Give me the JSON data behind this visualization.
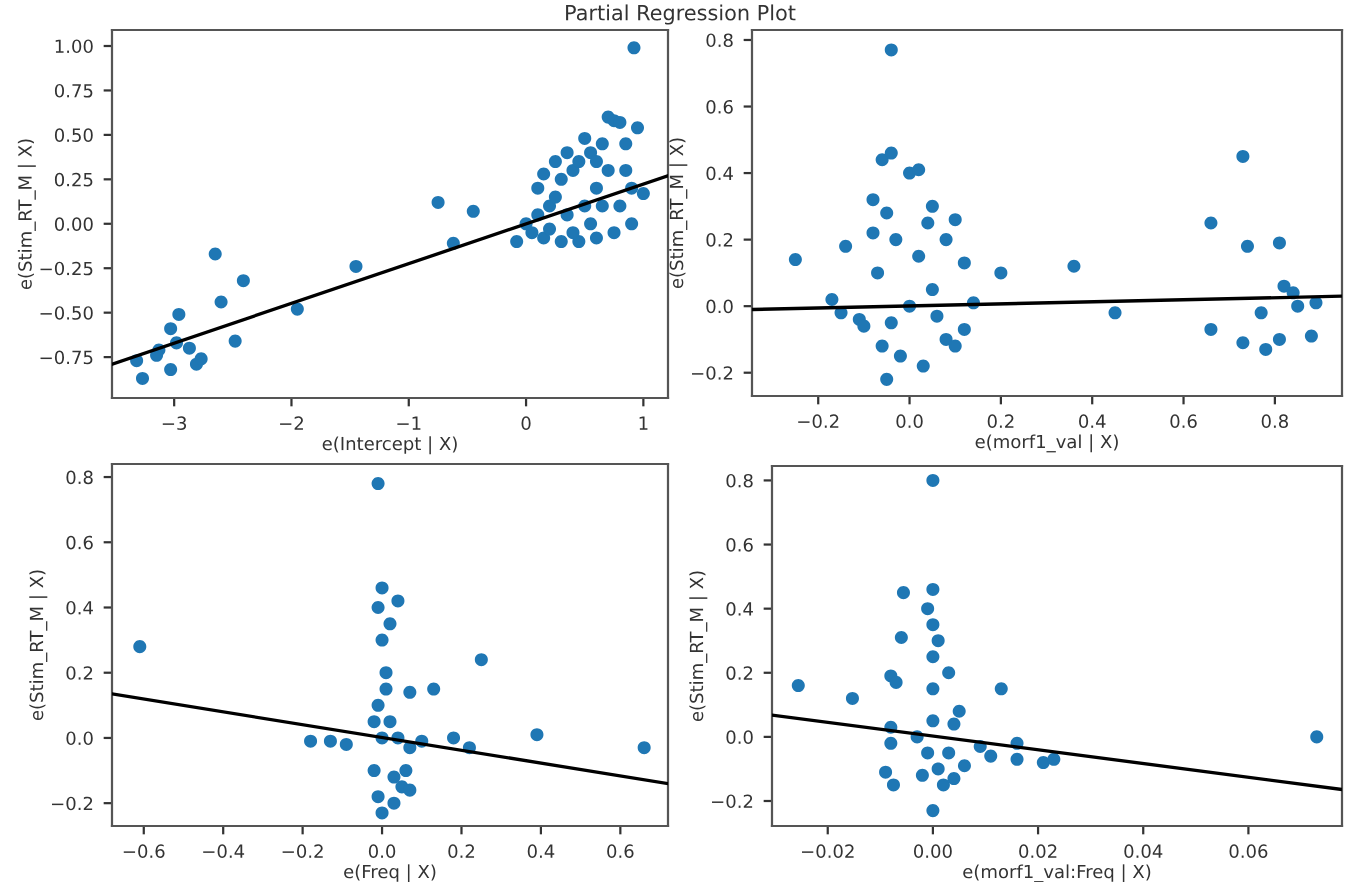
{
  "chart_data": [
    {
      "type": "scatter",
      "title": "Partial Regression Plot",
      "xlabel": "e(Intercept | X)",
      "ylabel": "e(Stim_RT_M | X)",
      "xlim": [
        -3.53,
        1.21
      ],
      "ylim": [
        -0.98,
        1.09
      ],
      "xticks": [
        {
          "value": -3,
          "label": "−3"
        },
        {
          "value": -2,
          "label": "−2"
        },
        {
          "value": -1,
          "label": "−1"
        },
        0,
        1
      ],
      "yticks": [
        {
          "value": -0.75,
          "label": "−0.75"
        },
        {
          "value": -0.5,
          "label": "−0.50"
        },
        {
          "value": -0.25,
          "label": "−0.25"
        },
        {
          "value": 0,
          "label": "0.00"
        },
        {
          "value": 0.25,
          "label": "0.25"
        },
        {
          "value": 0.5,
          "label": "0.50"
        },
        {
          "value": 0.75,
          "label": "0.75"
        },
        {
          "value": 1,
          "label": "1.00"
        }
      ],
      "grid": false,
      "marker": "circle",
      "series": [
        {
          "type": "scatter",
          "color": "#1f77b4",
          "x": [
            0.92,
            -0.75,
            -0.45,
            -0.62,
            -1.45,
            -1.95,
            -2.65,
            -2.6,
            -2.41,
            -2.48,
            -2.96,
            -3.03,
            -2.98,
            -3.32,
            -3.27,
            -3.03,
            -3.13,
            -2.87,
            -2.81,
            -2.77,
            -3.15,
            -0.08,
            1.0,
            0.0,
            0.05,
            0.1,
            0.15,
            0.2,
            0.25,
            0.3,
            0.3,
            0.35,
            0.4,
            0.45,
            0.45,
            0.5,
            0.5,
            0.55,
            0.6,
            0.6,
            0.65,
            0.7,
            0.75,
            0.8,
            0.7,
            0.75,
            0.8,
            0.85,
            0.85,
            0.9,
            0.95,
            0.9,
            0.1,
            0.15,
            0.2,
            0.4,
            0.55,
            0.65,
            0.35,
            0.25,
            0.6
          ],
          "values": [
            0.99,
            0.12,
            0.07,
            -0.11,
            -0.24,
            -0.48,
            -0.17,
            -0.44,
            -0.32,
            -0.66,
            -0.51,
            -0.59,
            -0.67,
            -0.77,
            -0.87,
            -0.82,
            -0.71,
            -0.7,
            -0.79,
            -0.76,
            -0.74,
            -0.1,
            0.17,
            0.0,
            -0.05,
            0.05,
            -0.08,
            0.1,
            0.15,
            -0.1,
            0.25,
            0.05,
            0.3,
            -0.1,
            0.35,
            0.1,
            0.48,
            0.4,
            -0.08,
            0.2,
            0.45,
            0.6,
            0.58,
            0.57,
            0.3,
            -0.05,
            0.1,
            0.3,
            0.45,
            0.2,
            0.54,
            0.0,
            0.2,
            0.28,
            -0.03,
            -0.05,
            0.0,
            0.1,
            0.4,
            0.35,
            0.35
          ]
        },
        {
          "type": "line",
          "color": "#000000",
          "marker": "none",
          "x": [
            -3.53,
            1.21
          ],
          "values": [
            -0.79,
            0.27
          ]
        }
      ]
    },
    {
      "type": "scatter",
      "xlabel": "e(morf1_val | X)",
      "ylabel": "e(Stim_RT_M | X)",
      "xlim": [
        -0.345,
        0.947
      ],
      "ylim": [
        -0.27,
        0.83
      ],
      "xticks": [
        {
          "value": -0.2,
          "label": "−0.2"
        },
        {
          "value": 0,
          "label": "0.0"
        },
        0.2,
        0.4,
        0.6,
        0.8
      ],
      "yticks": [
        {
          "value": -0.2,
          "label": "−0.2"
        },
        {
          "value": 0,
          "label": "0.0"
        },
        0.2,
        0.4,
        0.6,
        0.8
      ],
      "grid": false,
      "marker": "circle",
      "series": [
        {
          "type": "scatter",
          "color": "#1f77b4",
          "x": [
            -0.04,
            -0.25,
            -0.14,
            -0.17,
            -0.15,
            -0.11,
            0.2,
            0.36,
            0.45,
            0.66,
            0.66,
            0.73,
            0.74,
            0.73,
            0.78,
            0.77,
            0.81,
            0.82,
            0.81,
            0.84,
            0.85,
            0.88,
            0.89,
            -0.06,
            -0.04,
            -0.08,
            0.0,
            0.02,
            -0.05,
            0.05,
            0.1,
            -0.1,
            -0.05,
            -0.02,
            0.03,
            0.08,
            0.12,
            0.14,
            0.12,
            0.08,
            -0.03,
            0.0,
            0.05,
            -0.07,
            0.02,
            -0.04,
            0.06,
            -0.08,
            0.1,
            -0.06,
            0.04
          ],
          "values": [
            0.77,
            0.14,
            0.18,
            0.02,
            -0.02,
            -0.04,
            0.1,
            0.12,
            -0.02,
            -0.07,
            0.25,
            0.45,
            0.18,
            -0.11,
            -0.13,
            -0.02,
            0.19,
            0.06,
            -0.1,
            0.04,
            0.0,
            -0.09,
            0.01,
            0.44,
            0.46,
            0.32,
            0.4,
            0.41,
            0.28,
            0.3,
            0.26,
            -0.06,
            -0.22,
            -0.15,
            -0.18,
            -0.1,
            -0.07,
            0.01,
            0.13,
            0.2,
            0.2,
            0.0,
            0.05,
            0.1,
            0.15,
            -0.05,
            -0.03,
            0.22,
            -0.12,
            -0.12,
            0.25
          ]
        },
        {
          "type": "line",
          "color": "#000000",
          "marker": "none",
          "x": [
            -0.345,
            0.947
          ],
          "values": [
            -0.01,
            0.03
          ]
        }
      ]
    },
    {
      "type": "scatter",
      "xlabel": "e(Freq | X)",
      "ylabel": "e(Stim_RT_M | X)",
      "xlim": [
        -0.68,
        0.72
      ],
      "ylim": [
        -0.27,
        0.84
      ],
      "xticks": [
        {
          "value": -0.6,
          "label": "−0.6"
        },
        {
          "value": -0.4,
          "label": "−0.4"
        },
        {
          "value": -0.2,
          "label": "−0.2"
        },
        {
          "value": 0,
          "label": "0.0"
        },
        0.2,
        0.4,
        0.6
      ],
      "yticks": [
        {
          "value": -0.2,
          "label": "−0.2"
        },
        {
          "value": 0,
          "label": "0.0"
        },
        0.2,
        0.4,
        0.6,
        0.8
      ],
      "grid": false,
      "marker": "circle",
      "series": [
        {
          "type": "scatter",
          "color": "#1f77b4",
          "x": [
            -0.01,
            -0.61,
            0.25,
            0.04,
            0.13,
            0.07,
            -0.13,
            -0.18,
            -0.09,
            0.18,
            0.22,
            0.39,
            0.66,
            0.1,
            0.0,
            -0.01,
            0.0,
            0.01,
            -0.01,
            0.02,
            0.0,
            -0.02,
            0.03,
            0.05,
            0.07,
            0.06,
            0.0,
            -0.01,
            0.02,
            0.01,
            0.04,
            -0.02,
            0.03,
            0.07
          ],
          "values": [
            0.78,
            0.28,
            0.24,
            0.42,
            0.15,
            0.14,
            -0.01,
            -0.01,
            -0.02,
            0.0,
            -0.03,
            0.01,
            -0.03,
            -0.01,
            0.46,
            0.4,
            0.3,
            0.2,
            0.1,
            0.05,
            0.0,
            -0.1,
            -0.12,
            -0.15,
            -0.03,
            -0.1,
            -0.23,
            -0.18,
            0.35,
            0.15,
            0.0,
            0.05,
            -0.2,
            -0.16
          ]
        },
        {
          "type": "line",
          "color": "#000000",
          "marker": "none",
          "x": [
            -0.68,
            0.72
          ],
          "values": [
            0.135,
            -0.14
          ]
        }
      ]
    },
    {
      "type": "scatter",
      "xlabel": "e(morf1_val:Freq | X)",
      "ylabel": "e(Stim_RT_M | X)",
      "xlim": [
        -0.0306,
        0.0778
      ],
      "ylim": [
        -0.278,
        0.845
      ],
      "xticks": [
        {
          "value": -0.02,
          "label": "−0.02"
        },
        {
          "value": 0,
          "label": "0.00"
        },
        {
          "value": 0.02,
          "label": "0.02"
        },
        {
          "value": 0.04,
          "label": "0.04"
        },
        {
          "value": 0.06,
          "label": "0.06"
        }
      ],
      "yticks": [
        {
          "value": -0.2,
          "label": "−0.2"
        },
        {
          "value": 0,
          "label": "0.0"
        },
        0.2,
        0.4,
        0.6,
        0.8
      ],
      "grid": false,
      "marker": "circle",
      "series": [
        {
          "type": "scatter",
          "color": "#1f77b4",
          "x": [
            0.0,
            -0.0256,
            -0.0153,
            -0.0056,
            -0.006,
            -0.008,
            -0.007,
            0.003,
            0.013,
            0.005,
            0.004,
            0.016,
            0.016,
            0.021,
            0.023,
            0.006,
            -0.009,
            -0.0075,
            0.073,
            -0.008,
            -0.008,
            0.011,
            0.009,
            0.0,
            0.0,
            0.0,
            0.0,
            0.0,
            -0.001,
            0.001,
            0.0,
            0.002,
            -0.002,
            0.003,
            0.001,
            -0.001,
            0.004,
            -0.003
          ],
          "values": [
            0.8,
            0.16,
            0.12,
            0.45,
            0.31,
            0.19,
            0.17,
            0.2,
            0.15,
            0.08,
            0.04,
            -0.02,
            -0.07,
            -0.08,
            -0.07,
            -0.09,
            -0.11,
            -0.15,
            0.0,
            0.03,
            -0.02,
            -0.06,
            -0.03,
            0.46,
            0.35,
            0.25,
            0.15,
            0.05,
            -0.05,
            -0.1,
            -0.23,
            -0.15,
            -0.12,
            -0.05,
            0.3,
            0.4,
            -0.13,
            0.0
          ]
        },
        {
          "type": "line",
          "color": "#000000",
          "marker": "none",
          "x": [
            -0.0306,
            0.0778
          ],
          "values": [
            0.068,
            -0.164
          ]
        }
      ]
    }
  ]
}
